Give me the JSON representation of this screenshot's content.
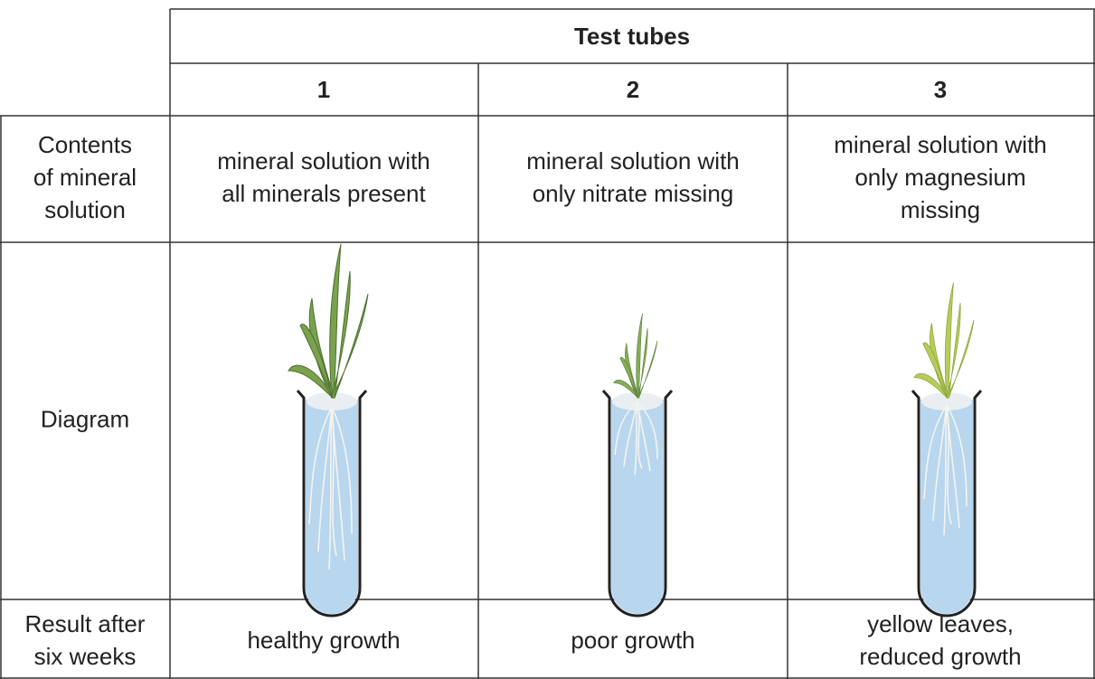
{
  "table": {
    "header": "Test tubes",
    "columns": [
      "1",
      "2",
      "3"
    ],
    "rows": [
      {
        "label": [
          "Contents",
          "of mineral",
          "solution"
        ],
        "cells": [
          [
            "mineral solution with",
            "all minerals present"
          ],
          [
            "mineral solution with",
            "only nitrate missing"
          ],
          [
            "mineral solution with",
            "only magnesium",
            "missing"
          ]
        ]
      },
      {
        "label": [
          "Diagram"
        ]
      },
      {
        "label": [
          "Result after",
          "six weeks"
        ],
        "cells": [
          [
            "healthy growth"
          ],
          [
            "poor growth"
          ],
          [
            "yellow leaves,",
            "reduced growth"
          ]
        ]
      }
    ]
  }
}
